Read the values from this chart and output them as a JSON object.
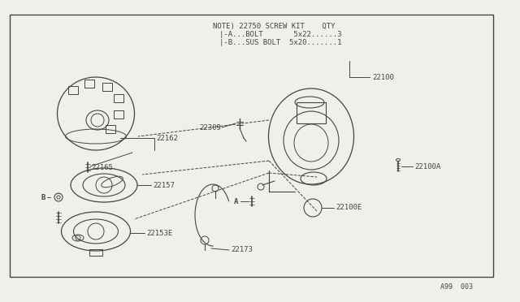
{
  "bg_color": "#f0f0eb",
  "line_color": "#444444",
  "text_color": "#444444",
  "note_line0": "NOTE) 22750 SCREW KIT    QTY",
  "note_line1": "|-A...BOLT       5x22......3",
  "note_line2": "|-B...SUS BOLT  5x20.......1",
  "ref_22100": "22100",
  "ref_22100A": "22100A",
  "ref_22100E": "22100E",
  "ref_22162": "22162",
  "ref_22165": "22165",
  "ref_22309": "22309",
  "ref_22157": "22157",
  "ref_22173": "22173",
  "ref_22153E": "22153E",
  "label_A": "A",
  "label_B": "B",
  "page_ref": "A99  003"
}
